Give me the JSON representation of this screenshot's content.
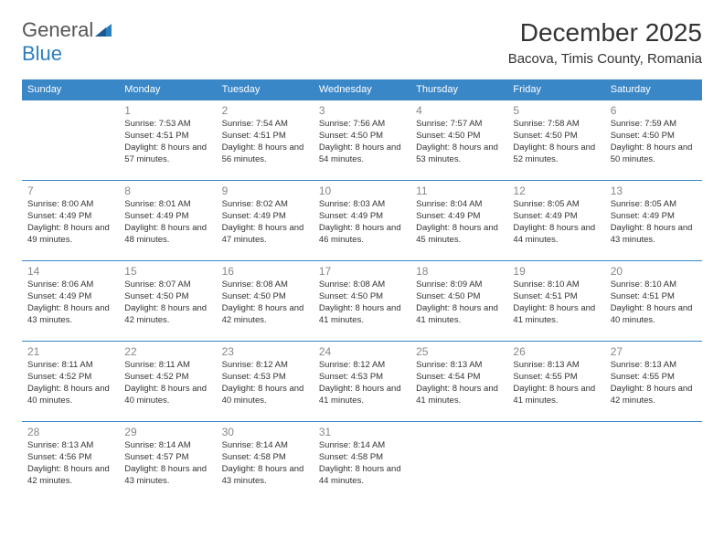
{
  "brand": {
    "name_part1": "General",
    "name_part2": "Blue"
  },
  "title": "December 2025",
  "location": "Bacova, Timis County, Romania",
  "colors": {
    "header_bg": "#3a87c8",
    "header_text": "#ffffff",
    "row_border": "#3a87c8",
    "day_num": "#888888",
    "body_text": "#333333",
    "brand_grey": "#555555",
    "brand_blue": "#2c7fbf",
    "background": "#ffffff"
  },
  "typography": {
    "title_size": 28,
    "location_size": 15,
    "weekday_size": 11,
    "daynum_size": 12,
    "info_size": 9.5
  },
  "weekdays": [
    "Sunday",
    "Monday",
    "Tuesday",
    "Wednesday",
    "Thursday",
    "Friday",
    "Saturday"
  ],
  "weeks": [
    [
      null,
      {
        "n": "1",
        "sr": "Sunrise: 7:53 AM",
        "ss": "Sunset: 4:51 PM",
        "dl": "Daylight: 8 hours and 57 minutes."
      },
      {
        "n": "2",
        "sr": "Sunrise: 7:54 AM",
        "ss": "Sunset: 4:51 PM",
        "dl": "Daylight: 8 hours and 56 minutes."
      },
      {
        "n": "3",
        "sr": "Sunrise: 7:56 AM",
        "ss": "Sunset: 4:50 PM",
        "dl": "Daylight: 8 hours and 54 minutes."
      },
      {
        "n": "4",
        "sr": "Sunrise: 7:57 AM",
        "ss": "Sunset: 4:50 PM",
        "dl": "Daylight: 8 hours and 53 minutes."
      },
      {
        "n": "5",
        "sr": "Sunrise: 7:58 AM",
        "ss": "Sunset: 4:50 PM",
        "dl": "Daylight: 8 hours and 52 minutes."
      },
      {
        "n": "6",
        "sr": "Sunrise: 7:59 AM",
        "ss": "Sunset: 4:50 PM",
        "dl": "Daylight: 8 hours and 50 minutes."
      }
    ],
    [
      {
        "n": "7",
        "sr": "Sunrise: 8:00 AM",
        "ss": "Sunset: 4:49 PM",
        "dl": "Daylight: 8 hours and 49 minutes."
      },
      {
        "n": "8",
        "sr": "Sunrise: 8:01 AM",
        "ss": "Sunset: 4:49 PM",
        "dl": "Daylight: 8 hours and 48 minutes."
      },
      {
        "n": "9",
        "sr": "Sunrise: 8:02 AM",
        "ss": "Sunset: 4:49 PM",
        "dl": "Daylight: 8 hours and 47 minutes."
      },
      {
        "n": "10",
        "sr": "Sunrise: 8:03 AM",
        "ss": "Sunset: 4:49 PM",
        "dl": "Daylight: 8 hours and 46 minutes."
      },
      {
        "n": "11",
        "sr": "Sunrise: 8:04 AM",
        "ss": "Sunset: 4:49 PM",
        "dl": "Daylight: 8 hours and 45 minutes."
      },
      {
        "n": "12",
        "sr": "Sunrise: 8:05 AM",
        "ss": "Sunset: 4:49 PM",
        "dl": "Daylight: 8 hours and 44 minutes."
      },
      {
        "n": "13",
        "sr": "Sunrise: 8:05 AM",
        "ss": "Sunset: 4:49 PM",
        "dl": "Daylight: 8 hours and 43 minutes."
      }
    ],
    [
      {
        "n": "14",
        "sr": "Sunrise: 8:06 AM",
        "ss": "Sunset: 4:49 PM",
        "dl": "Daylight: 8 hours and 43 minutes."
      },
      {
        "n": "15",
        "sr": "Sunrise: 8:07 AM",
        "ss": "Sunset: 4:50 PM",
        "dl": "Daylight: 8 hours and 42 minutes."
      },
      {
        "n": "16",
        "sr": "Sunrise: 8:08 AM",
        "ss": "Sunset: 4:50 PM",
        "dl": "Daylight: 8 hours and 42 minutes."
      },
      {
        "n": "17",
        "sr": "Sunrise: 8:08 AM",
        "ss": "Sunset: 4:50 PM",
        "dl": "Daylight: 8 hours and 41 minutes."
      },
      {
        "n": "18",
        "sr": "Sunrise: 8:09 AM",
        "ss": "Sunset: 4:50 PM",
        "dl": "Daylight: 8 hours and 41 minutes."
      },
      {
        "n": "19",
        "sr": "Sunrise: 8:10 AM",
        "ss": "Sunset: 4:51 PM",
        "dl": "Daylight: 8 hours and 41 minutes."
      },
      {
        "n": "20",
        "sr": "Sunrise: 8:10 AM",
        "ss": "Sunset: 4:51 PM",
        "dl": "Daylight: 8 hours and 40 minutes."
      }
    ],
    [
      {
        "n": "21",
        "sr": "Sunrise: 8:11 AM",
        "ss": "Sunset: 4:52 PM",
        "dl": "Daylight: 8 hours and 40 minutes."
      },
      {
        "n": "22",
        "sr": "Sunrise: 8:11 AM",
        "ss": "Sunset: 4:52 PM",
        "dl": "Daylight: 8 hours and 40 minutes."
      },
      {
        "n": "23",
        "sr": "Sunrise: 8:12 AM",
        "ss": "Sunset: 4:53 PM",
        "dl": "Daylight: 8 hours and 40 minutes."
      },
      {
        "n": "24",
        "sr": "Sunrise: 8:12 AM",
        "ss": "Sunset: 4:53 PM",
        "dl": "Daylight: 8 hours and 41 minutes."
      },
      {
        "n": "25",
        "sr": "Sunrise: 8:13 AM",
        "ss": "Sunset: 4:54 PM",
        "dl": "Daylight: 8 hours and 41 minutes."
      },
      {
        "n": "26",
        "sr": "Sunrise: 8:13 AM",
        "ss": "Sunset: 4:55 PM",
        "dl": "Daylight: 8 hours and 41 minutes."
      },
      {
        "n": "27",
        "sr": "Sunrise: 8:13 AM",
        "ss": "Sunset: 4:55 PM",
        "dl": "Daylight: 8 hours and 42 minutes."
      }
    ],
    [
      {
        "n": "28",
        "sr": "Sunrise: 8:13 AM",
        "ss": "Sunset: 4:56 PM",
        "dl": "Daylight: 8 hours and 42 minutes."
      },
      {
        "n": "29",
        "sr": "Sunrise: 8:14 AM",
        "ss": "Sunset: 4:57 PM",
        "dl": "Daylight: 8 hours and 43 minutes."
      },
      {
        "n": "30",
        "sr": "Sunrise: 8:14 AM",
        "ss": "Sunset: 4:58 PM",
        "dl": "Daylight: 8 hours and 43 minutes."
      },
      {
        "n": "31",
        "sr": "Sunrise: 8:14 AM",
        "ss": "Sunset: 4:58 PM",
        "dl": "Daylight: 8 hours and 44 minutes."
      },
      null,
      null,
      null
    ]
  ]
}
